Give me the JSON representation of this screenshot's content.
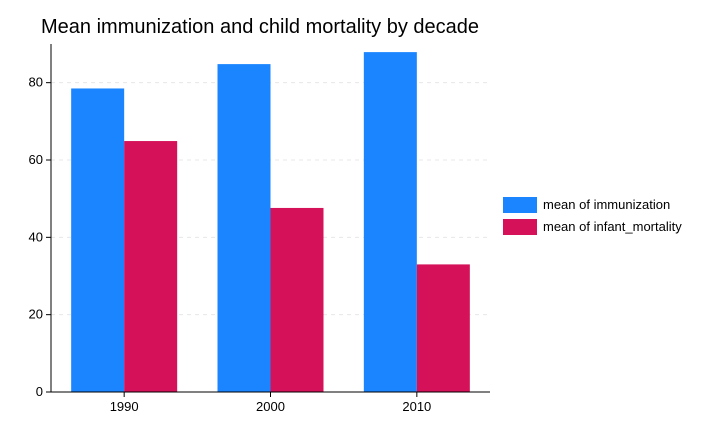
{
  "chart_data": {
    "type": "bar",
    "title": "Mean immunization and child mortality by decade",
    "xlabel": "",
    "ylabel": "",
    "categories": [
      "1990",
      "2000",
      "2010"
    ],
    "series": [
      {
        "name": "mean of immunization",
        "values": [
          78.5,
          84.8,
          87.9
        ],
        "color": "#1a85ff"
      },
      {
        "name": "mean of infant_mortality",
        "values": [
          64.9,
          47.6,
          33.0
        ],
        "color": "#d41159"
      }
    ],
    "ylim": [
      0,
      90
    ],
    "yticks": [
      0,
      20,
      40,
      60,
      80
    ],
    "grid": true,
    "legend_position": "right"
  }
}
